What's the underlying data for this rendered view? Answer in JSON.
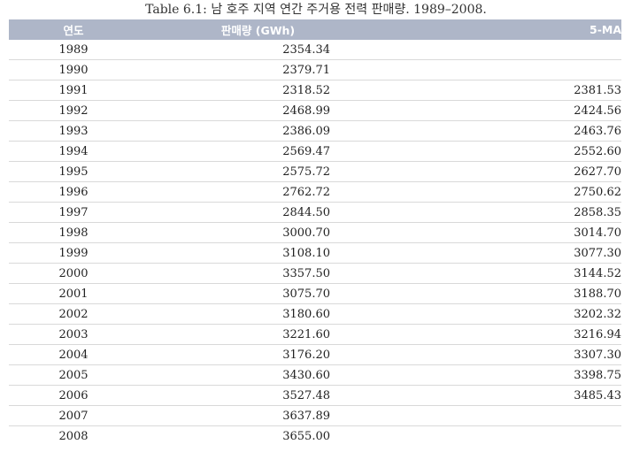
{
  "caption": {
    "label": "Table 6.1:",
    "text": "남 호주 지역 연간 주거용 전력 판매량. 1989–2008."
  },
  "table": {
    "headers": {
      "year": "연도",
      "sales": "판매량 (GWh)",
      "ma": "5-MA"
    },
    "rows": [
      {
        "year": "1989",
        "sales": "2354.34",
        "ma": ""
      },
      {
        "year": "1990",
        "sales": "2379.71",
        "ma": ""
      },
      {
        "year": "1991",
        "sales": "2318.52",
        "ma": "2381.53"
      },
      {
        "year": "1992",
        "sales": "2468.99",
        "ma": "2424.56"
      },
      {
        "year": "1993",
        "sales": "2386.09",
        "ma": "2463.76"
      },
      {
        "year": "1994",
        "sales": "2569.47",
        "ma": "2552.60"
      },
      {
        "year": "1995",
        "sales": "2575.72",
        "ma": "2627.70"
      },
      {
        "year": "1996",
        "sales": "2762.72",
        "ma": "2750.62"
      },
      {
        "year": "1997",
        "sales": "2844.50",
        "ma": "2858.35"
      },
      {
        "year": "1998",
        "sales": "3000.70",
        "ma": "3014.70"
      },
      {
        "year": "1999",
        "sales": "3108.10",
        "ma": "3077.30"
      },
      {
        "year": "2000",
        "sales": "3357.50",
        "ma": "3144.52"
      },
      {
        "year": "2001",
        "sales": "3075.70",
        "ma": "3188.70"
      },
      {
        "year": "2002",
        "sales": "3180.60",
        "ma": "3202.32"
      },
      {
        "year": "2003",
        "sales": "3221.60",
        "ma": "3216.94"
      },
      {
        "year": "2004",
        "sales": "3176.20",
        "ma": "3307.30"
      },
      {
        "year": "2005",
        "sales": "3430.60",
        "ma": "3398.75"
      },
      {
        "year": "2006",
        "sales": "3527.48",
        "ma": "3485.43"
      },
      {
        "year": "2007",
        "sales": "3637.89",
        "ma": ""
      },
      {
        "year": "2008",
        "sales": "3655.00",
        "ma": ""
      }
    ]
  },
  "colors": {
    "header_bg": "#aeb6c8",
    "header_text": "#ffffff",
    "row_rule": "#d9d9d9"
  }
}
